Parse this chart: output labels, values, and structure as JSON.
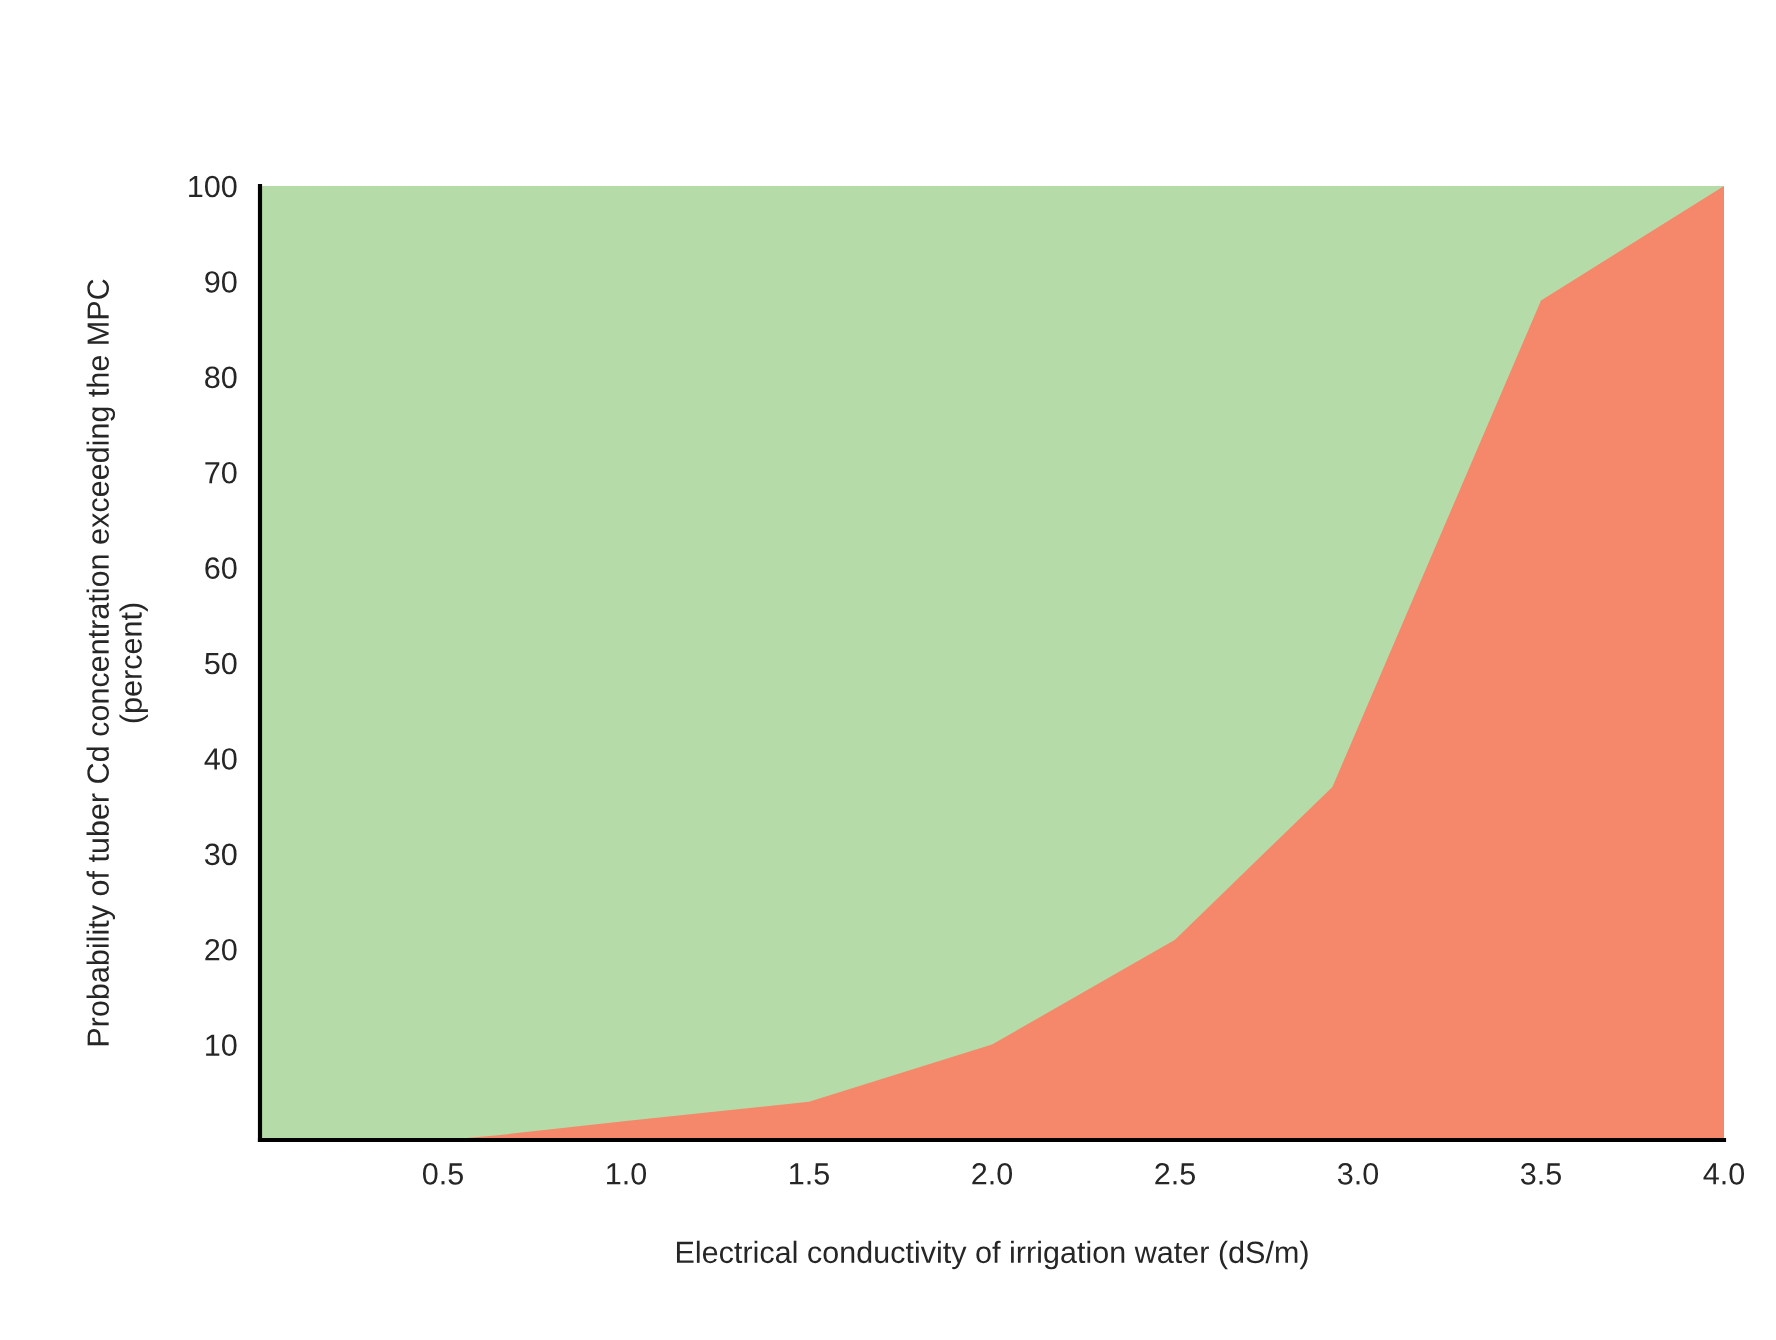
{
  "chart_data": {
    "type": "area",
    "xlabel": "Electrical conductivity of irrigation water (dS/m)",
    "ylabel": "Probability of tuber Cd concentration exceeding the MPC\n(percent)",
    "x": [
      0,
      0.5,
      0.65,
      1.0,
      1.5,
      2.0,
      2.5,
      2.93,
      3.5,
      4.0
    ],
    "series": [
      {
        "color": "#f5876a",
        "values": [
          0,
          0,
          0.5,
          2,
          4,
          10,
          21,
          37,
          88,
          100
        ]
      }
    ],
    "xlim": [
      0,
      4.0
    ],
    "xticks": [
      {
        "value": 0.5,
        "label": "0.5"
      },
      {
        "value": 1.0,
        "label": "1.0"
      },
      {
        "value": 1.5,
        "label": "1.5"
      },
      {
        "value": 2.0,
        "label": "2.0"
      },
      {
        "value": 2.5,
        "label": "2.5"
      },
      {
        "value": 3.0,
        "label": "3.0"
      },
      {
        "value": 3.5,
        "label": "3.5"
      },
      {
        "value": 4.0,
        "label": "4.0"
      }
    ],
    "ylim": [
      0,
      100
    ],
    "yticks": [
      10,
      20,
      30,
      40,
      50,
      60,
      70,
      80,
      90,
      100
    ],
    "grid": false,
    "legend": false
  }
}
